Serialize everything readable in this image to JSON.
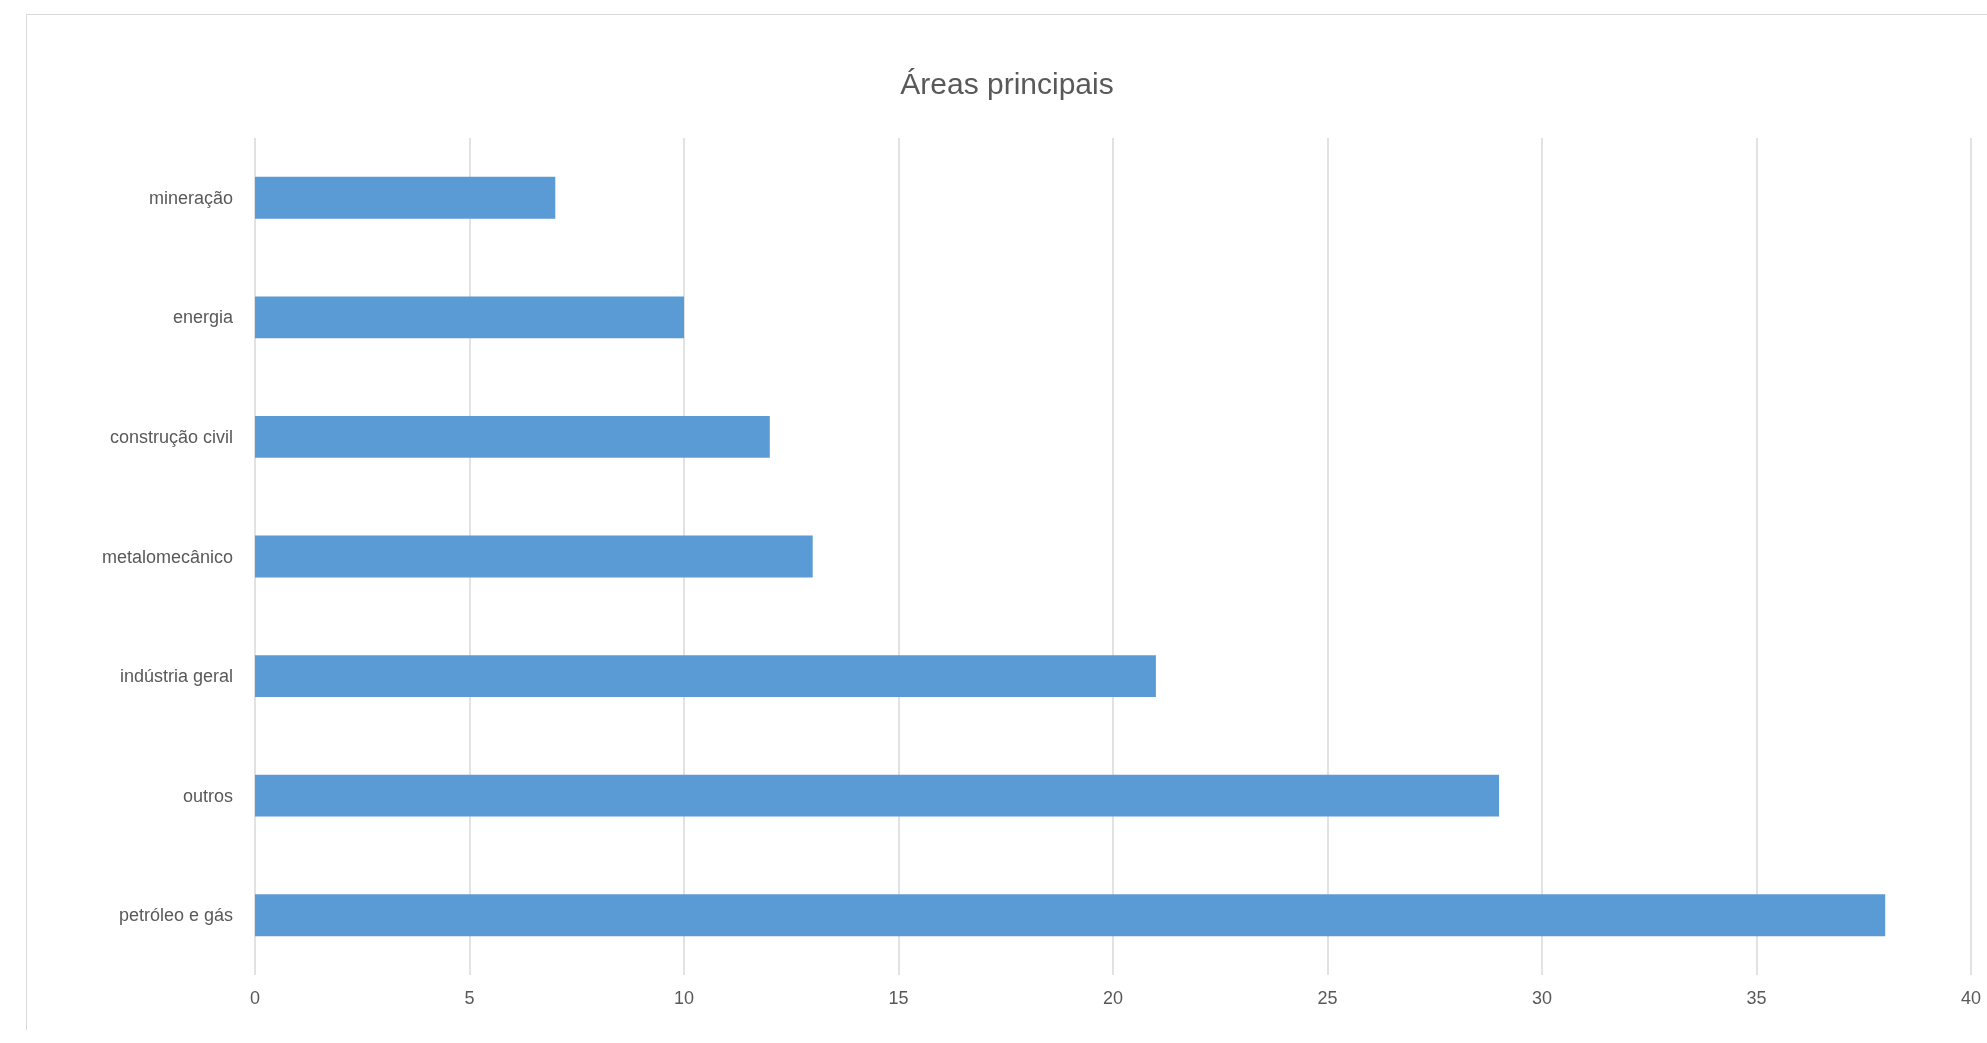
{
  "chart_data": {
    "type": "bar",
    "orientation": "horizontal",
    "title": "Áreas principais",
    "categories": [
      "mineração",
      "energia",
      "construção civil",
      "metalomecânico",
      "indústria geral",
      "outros",
      "petróleo e gás"
    ],
    "values": [
      7,
      10,
      12,
      13,
      21,
      29,
      38
    ],
    "color": "#5b9bd5",
    "xlim": [
      0,
      40
    ],
    "xticks": [
      0,
      5,
      10,
      15,
      20,
      25,
      30,
      35,
      40
    ],
    "grid": "x"
  }
}
